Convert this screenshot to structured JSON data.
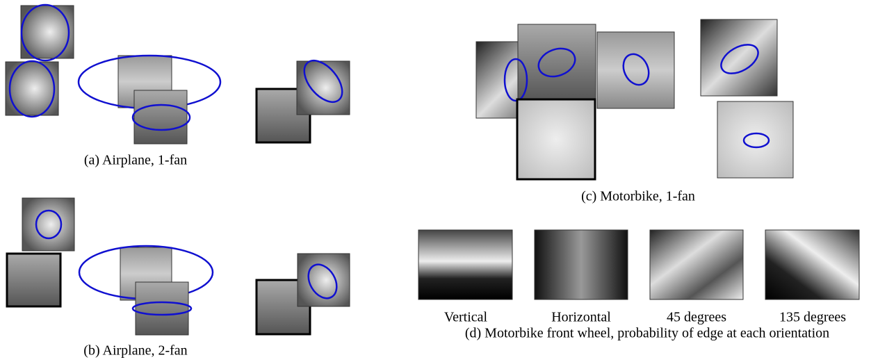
{
  "captions": {
    "a": "(a) Airplane, 1-fan",
    "b": "(b) Airplane, 2-fan",
    "c": "(c) Motorbike, 1-fan",
    "d": "(d) Motorbike front wheel, probability of edge at each orientation"
  },
  "orientations": [
    "Vertical",
    "Horizontal",
    "45 degrees",
    "135 degrees"
  ]
}
